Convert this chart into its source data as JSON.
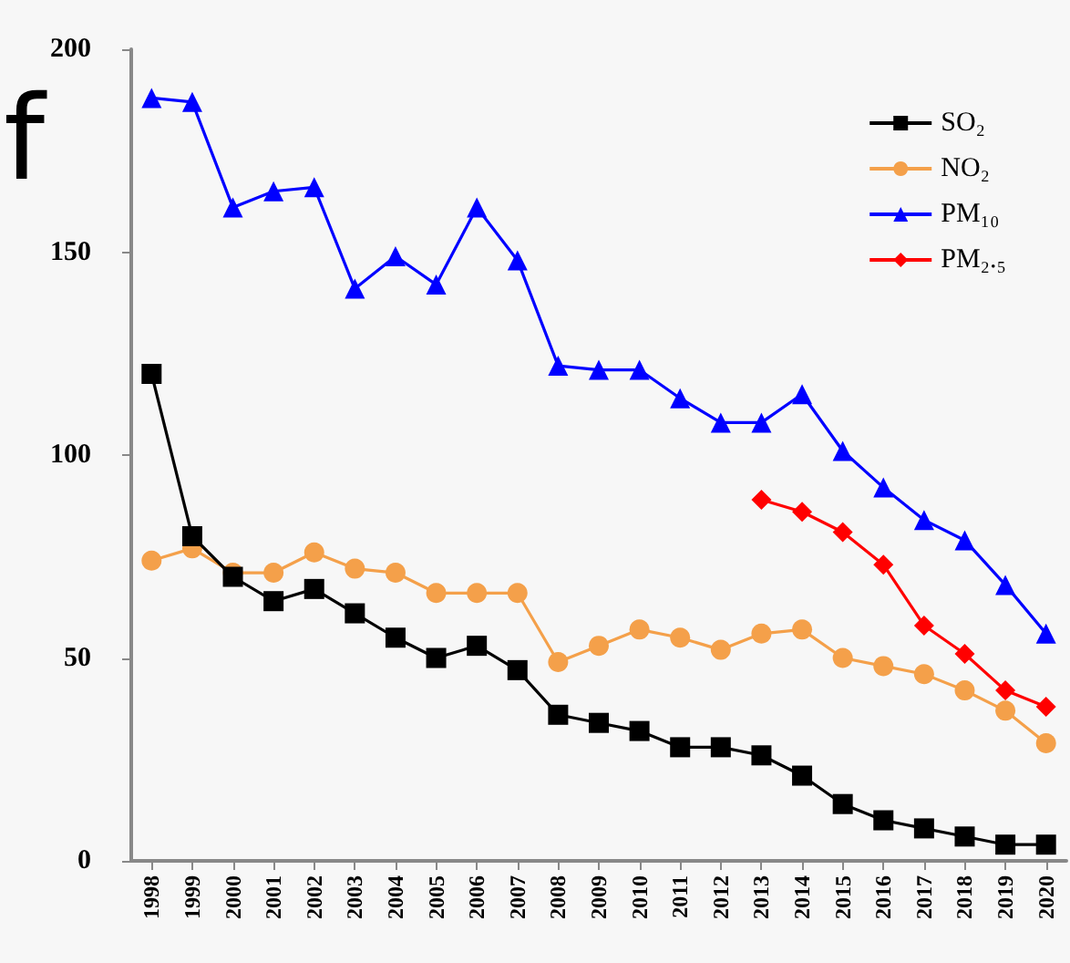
{
  "chart_data": {
    "type": "line",
    "categories": [
      "1998",
      "1999",
      "2000",
      "2001",
      "2002",
      "2003",
      "2004",
      "2005",
      "2006",
      "2007",
      "2008",
      "2009",
      "2010",
      "2011",
      "2012",
      "2013",
      "2014",
      "2015",
      "2016",
      "2017",
      "2018",
      "2019",
      "2020"
    ],
    "series": [
      {
        "name": "SO₂",
        "color": "#000000",
        "marker": "square",
        "values": [
          120,
          80,
          70,
          64,
          67,
          61,
          55,
          50,
          53,
          47,
          36,
          34,
          32,
          28,
          28,
          26,
          21,
          14,
          10,
          8,
          6,
          4,
          4
        ]
      },
      {
        "name": "NO₂",
        "color": "#f4a04a",
        "marker": "circle",
        "values": [
          74,
          77,
          71,
          71,
          76,
          72,
          71,
          66,
          66,
          66,
          49,
          53,
          57,
          55,
          52,
          56,
          57,
          50,
          48,
          46,
          42,
          37,
          29
        ]
      },
      {
        "name": "PM₁₀",
        "color": "#0000ff",
        "marker": "triangle",
        "values": [
          188,
          187,
          161,
          165,
          166,
          141,
          149,
          142,
          161,
          148,
          122,
          121,
          121,
          114,
          108,
          108,
          115,
          101,
          92,
          84,
          79,
          68,
          56
        ]
      },
      {
        "name": "PM₂.₅",
        "color": "#ff0000",
        "marker": "diamond",
        "values": [
          null,
          null,
          null,
          null,
          null,
          null,
          null,
          null,
          null,
          null,
          null,
          null,
          null,
          null,
          null,
          89,
          86,
          81,
          73,
          58,
          51,
          42,
          38
        ]
      }
    ],
    "ylim": [
      0,
      200
    ],
    "yticks": [
      0,
      50,
      100,
      150,
      200
    ],
    "grid": false,
    "legend": "top right",
    "annotations": [
      "f"
    ]
  }
}
